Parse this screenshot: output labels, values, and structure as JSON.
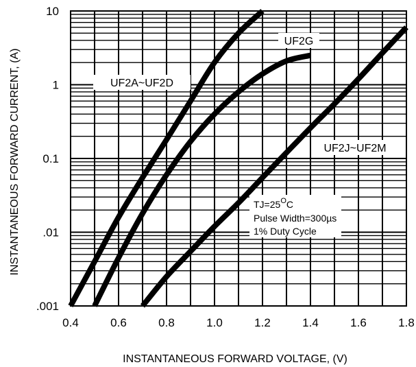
{
  "chart_data": {
    "type": "line",
    "title": "",
    "xlabel": "INSTANTANEOUS FORWARD VOLTAGE, (V)",
    "ylabel": "INSTANTANEOUS FORWARD CURRENT, (A)",
    "xlim": [
      0.4,
      1.8
    ],
    "ylim": [
      0.001,
      10
    ],
    "y_scale": "log",
    "grid": true,
    "x_ticks": [
      "0.4",
      "0.6",
      "0.8",
      "1.0",
      "1.2",
      "1.4",
      "1.6",
      "1.8"
    ],
    "y_ticks": [
      {
        "value": 10,
        "label": "10"
      },
      {
        "value": 1,
        "label": "1"
      },
      {
        "value": 0.1,
        "label": "0.1"
      },
      {
        "value": 0.01,
        "label": ".01"
      },
      {
        "value": 0.001,
        "label": ".001"
      }
    ],
    "series": [
      {
        "name": "UF2A~UF2D",
        "x": [
          0.4,
          0.5,
          0.6,
          0.7,
          0.8,
          0.9,
          1.0,
          1.1,
          1.2
        ],
        "y": [
          0.001,
          0.004,
          0.016,
          0.055,
          0.18,
          0.6,
          2.0,
          5.0,
          10
        ]
      },
      {
        "name": "UF2G",
        "x": [
          0.5,
          0.6,
          0.7,
          0.8,
          0.9,
          1.0,
          1.1,
          1.2,
          1.3,
          1.4
        ],
        "y": [
          0.001,
          0.0045,
          0.018,
          0.06,
          0.17,
          0.4,
          0.8,
          1.4,
          2.1,
          2.5
        ]
      },
      {
        "name": "UF2J~UF2M",
        "x": [
          0.7,
          0.8,
          0.9,
          1.0,
          1.1,
          1.2,
          1.3,
          1.4,
          1.5,
          1.6,
          1.7,
          1.8
        ],
        "y": [
          0.001,
          0.0025,
          0.0055,
          0.012,
          0.025,
          0.055,
          0.12,
          0.26,
          0.55,
          1.2,
          2.7,
          6.0
        ]
      }
    ],
    "annotations": {
      "temp_prefix": "TJ=25",
      "temp_degree": "O",
      "temp_unit": "C",
      "pulse": "Pulse Width=300µs",
      "duty": "1% Duty Cycle"
    }
  }
}
